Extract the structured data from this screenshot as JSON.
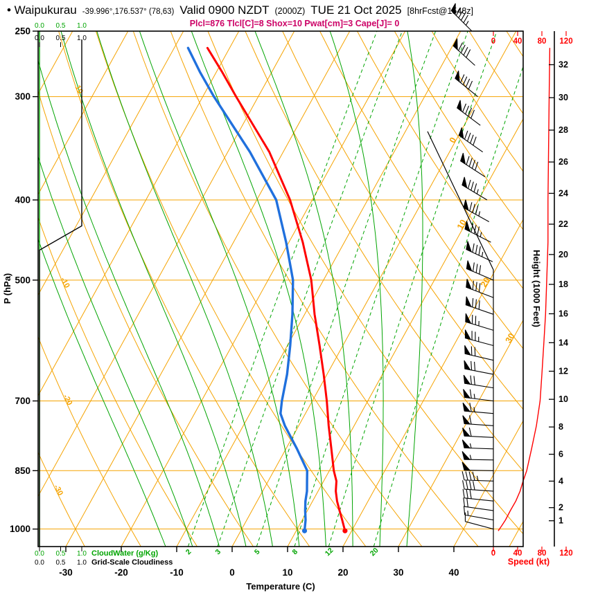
{
  "header": {
    "station": "• Waipukurau",
    "coords": "-39.996°,176.537° (78,63)",
    "valid": "Valid 0900 NZDT",
    "valid_utc": "(2000Z)",
    "date": "TUE 21 Oct 2025",
    "fcst": "[8hrFcst@1548z]",
    "parameters": "Plcl=876 Tlcl[C]=8 Shox=10 Pwat[cm]=3 Cape[J]= 0"
  },
  "colors": {
    "orange": "#F5A300",
    "green": "#00A400",
    "red": "#FF0000",
    "blue": "#2070DD",
    "magenta": "#CC0066",
    "black": "#000000"
  },
  "chart_data": {
    "type": "skewt-log-p-sounding",
    "axes": {
      "pressure_hpa": {
        "label": "P (hPa)",
        "ticks": [
          250,
          300,
          400,
          500,
          700,
          850,
          1000
        ],
        "gridlines": [
          300,
          400,
          500,
          700,
          850,
          1000
        ],
        "range": [
          250,
          1050
        ]
      },
      "temperature_c": {
        "label": "Temperature (C)",
        "ticks": [
          -30,
          -20,
          -10,
          0,
          10,
          20,
          30,
          40
        ]
      },
      "height_kft": {
        "label": "Height (1000 Feet)",
        "ticks": [
          1,
          2,
          4,
          6,
          8,
          10,
          12,
          14,
          16,
          18,
          20,
          22,
          24,
          26,
          28,
          30,
          32
        ]
      },
      "speed_kt": {
        "label": "Speed (kt)",
        "ticks": [
          0,
          40,
          80,
          120
        ]
      },
      "cloudwater": {
        "label": "CloudWater (g/Kg)",
        "ticks": [
          "0.0",
          "0.5",
          "1.0"
        ]
      },
      "cloudiness": {
        "label": "Grid-Scale Cloudiness",
        "ticks": [
          "0.0",
          "0.5",
          "1.0"
        ]
      }
    },
    "background": {
      "isotherm_step_c": 10,
      "isotherm_labels": [
        [
          0,
          340
        ],
        [
          10,
          430
        ],
        [
          20,
          505
        ],
        [
          30,
          590
        ]
      ],
      "dry_adiabat_labels": [
        [
          10,
          295
        ],
        [
          -10,
          505
        ],
        [
          -20,
          700
        ],
        [
          -30,
          900
        ]
      ],
      "mixing_ratio_lines": [
        2,
        3,
        5,
        8,
        12,
        20
      ],
      "moist_adiabats": [
        -15,
        -10,
        -5,
        0,
        5,
        10,
        15,
        20,
        25,
        30
      ]
    },
    "temperature_profile": [
      [
        1005,
        18.8
      ],
      [
        975,
        17.2
      ],
      [
        950,
        15.8
      ],
      [
        925,
        14.4
      ],
      [
        900,
        13.2
      ],
      [
        875,
        12.3
      ],
      [
        850,
        10.8
      ],
      [
        800,
        8.2
      ],
      [
        750,
        5.4
      ],
      [
        700,
        2.6
      ],
      [
        650,
        -0.6
      ],
      [
        600,
        -4.2
      ],
      [
        550,
        -8.2
      ],
      [
        500,
        -12.2
      ],
      [
        450,
        -17.5
      ],
      [
        400,
        -24.0
      ],
      [
        350,
        -32.5
      ],
      [
        300,
        -44.0
      ],
      [
        280,
        -49.0
      ],
      [
        262,
        -54.0
      ]
    ],
    "dewpoint_profile": [
      [
        1005,
        11.5
      ],
      [
        975,
        10.6
      ],
      [
        950,
        9.6
      ],
      [
        925,
        8.7
      ],
      [
        900,
        8.0
      ],
      [
        875,
        7.0
      ],
      [
        850,
        6.0
      ],
      [
        800,
        2.0
      ],
      [
        750,
        -2.5
      ],
      [
        725,
        -4.5
      ],
      [
        700,
        -5.5
      ],
      [
        650,
        -7.2
      ],
      [
        600,
        -9.5
      ],
      [
        550,
        -12.2
      ],
      [
        500,
        -15.5
      ],
      [
        450,
        -20.5
      ],
      [
        400,
        -26.5
      ],
      [
        350,
        -36.0
      ],
      [
        300,
        -48.0
      ],
      [
        280,
        -53.0
      ],
      [
        262,
        -57.5
      ]
    ],
    "cloudwater_profile": [
      [
        1050,
        0
      ],
      [
        250,
        0
      ]
    ],
    "cloudiness_profile": [
      [
        1050,
        0
      ],
      [
        460,
        0
      ],
      [
        430,
        1
      ],
      [
        256,
        1
      ]
    ],
    "wind_speed_profile": [
      [
        1005,
        8
      ],
      [
        990,
        14
      ],
      [
        975,
        20
      ],
      [
        950,
        28
      ],
      [
        925,
        37
      ],
      [
        900,
        44
      ],
      [
        875,
        49
      ],
      [
        850,
        55
      ],
      [
        800,
        63
      ],
      [
        750,
        71
      ],
      [
        700,
        77
      ],
      [
        650,
        80
      ],
      [
        600,
        83
      ],
      [
        550,
        86
      ],
      [
        500,
        88
      ],
      [
        450,
        90
      ],
      [
        400,
        90
      ],
      [
        350,
        91
      ],
      [
        300,
        92
      ],
      [
        262,
        93
      ]
    ],
    "wind_barbs": [
      [
        1000,
        285,
        8
      ],
      [
        975,
        280,
        15
      ],
      [
        950,
        278,
        22
      ],
      [
        925,
        276,
        30
      ],
      [
        900,
        274,
        38
      ],
      [
        875,
        272,
        45
      ],
      [
        850,
        271,
        50
      ],
      [
        825,
        271,
        53
      ],
      [
        800,
        272,
        56
      ],
      [
        775,
        273,
        58
      ],
      [
        750,
        274,
        61
      ],
      [
        725,
        275,
        63
      ],
      [
        700,
        277,
        66
      ],
      [
        675,
        279,
        68
      ],
      [
        650,
        281,
        70
      ],
      [
        625,
        283,
        72
      ],
      [
        600,
        285,
        74
      ],
      [
        575,
        287,
        76
      ],
      [
        550,
        289,
        78
      ],
      [
        525,
        291,
        80
      ],
      [
        500,
        293,
        81
      ],
      [
        475,
        295,
        83
      ],
      [
        450,
        297,
        85
      ],
      [
        425,
        299,
        86
      ],
      [
        400,
        301,
        87
      ],
      [
        375,
        303,
        88
      ],
      [
        350,
        305,
        89
      ],
      [
        325,
        307,
        90
      ],
      [
        300,
        309,
        91
      ],
      [
        275,
        312,
        92
      ],
      [
        250,
        315,
        93
      ]
    ]
  }
}
